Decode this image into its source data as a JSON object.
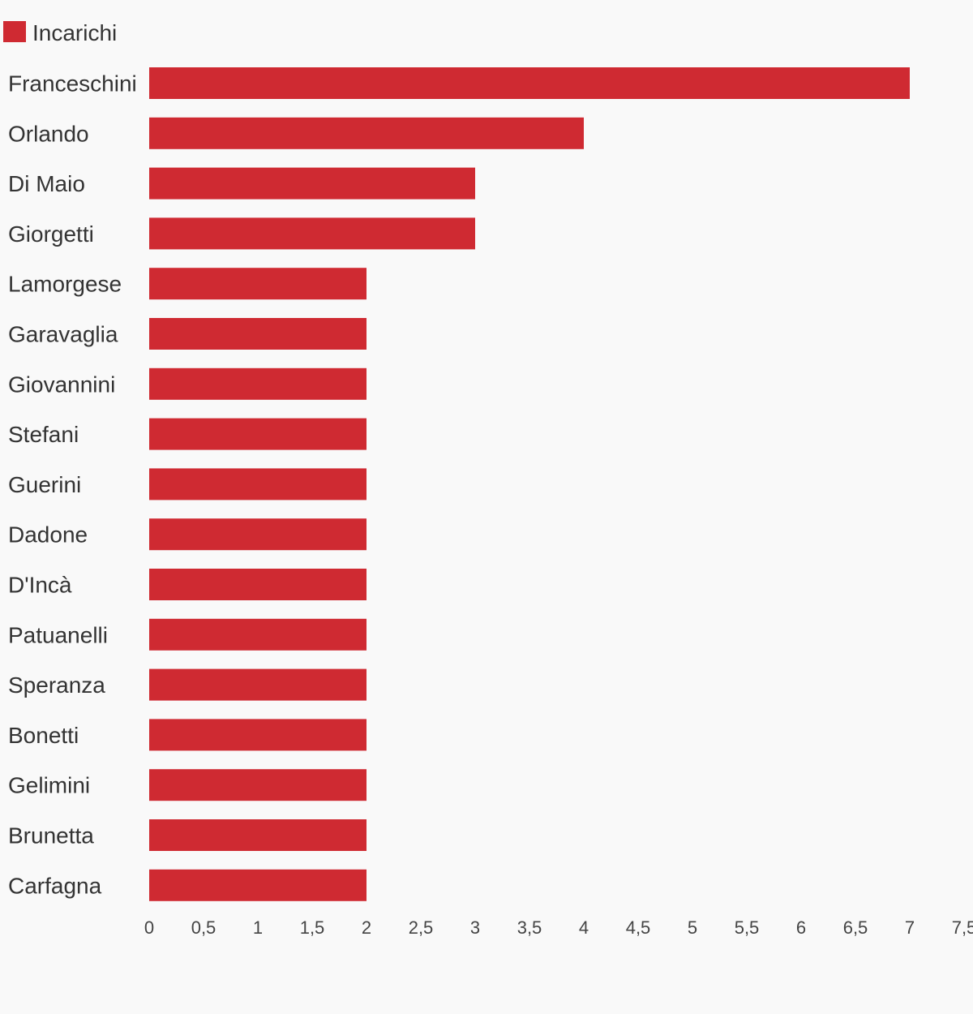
{
  "chart_data": {
    "type": "bar",
    "orientation": "horizontal",
    "categories": [
      "Franceschini",
      "Orlando",
      "Di Maio",
      "Giorgetti",
      "Lamorgese",
      "Garavaglia",
      "Giovannini",
      "Stefani",
      "Guerini",
      "Dadone",
      "D'Incà",
      "Patuanelli",
      "Speranza",
      "Bonetti",
      "Gelimini",
      "Brunetta",
      "Carfagna"
    ],
    "series": [
      {
        "name": "Incarichi",
        "color": "#cf2a32",
        "values": [
          7,
          4,
          3,
          3,
          2,
          2,
          2,
          2,
          2,
          2,
          2,
          2,
          2,
          2,
          2,
          2,
          2
        ]
      }
    ],
    "xlim": [
      0,
      7.5
    ],
    "xticks": [
      0,
      0.5,
      1,
      1.5,
      2,
      2.5,
      3,
      3.5,
      4,
      4.5,
      5,
      5.5,
      6,
      6.5,
      7,
      7.5
    ],
    "xtick_labels": [
      "0",
      "0,5",
      "1",
      "1,5",
      "2",
      "2,5",
      "3",
      "3,5",
      "4",
      "4,5",
      "5",
      "5,5",
      "6",
      "6,5",
      "7",
      "7,5"
    ],
    "legend_position": "top-left",
    "grid": false,
    "title": "",
    "xlabel": "",
    "ylabel": ""
  }
}
